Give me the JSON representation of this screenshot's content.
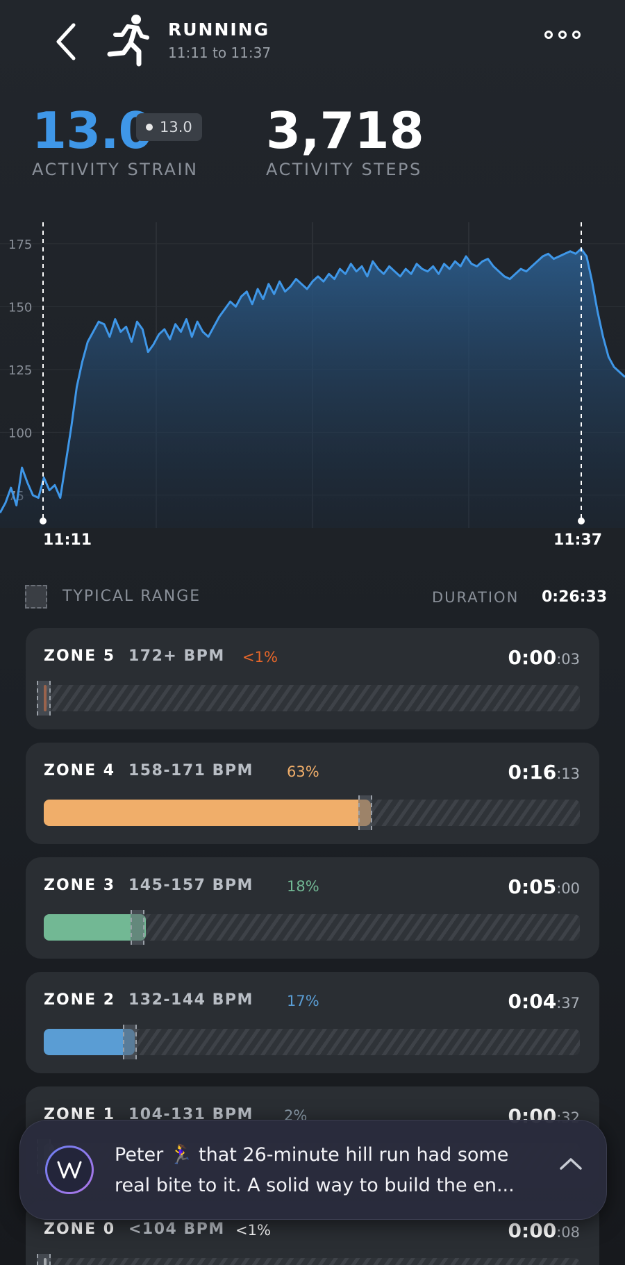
{
  "header": {
    "back_icon": "chevron-left-icon",
    "activity_icon": "running-figure-icon",
    "title": "RUNNING",
    "time_range": "11:11 to 11:37",
    "more_icon": "more-dots-icon"
  },
  "stats": {
    "strain_value": "13.0",
    "strain_chip": "13.0",
    "strain_label": "ACTIVITY STRAIN",
    "steps_value": "3,718",
    "steps_label": "ACTIVITY STEPS"
  },
  "chart_data": {
    "type": "area",
    "yticks": [
      "175",
      "150",
      "125",
      "100",
      "75"
    ],
    "ylim": [
      62,
      178
    ],
    "start_label": "11:11",
    "end_label": "11:37",
    "series_color": "#3f97e8",
    "y": [
      68,
      72,
      78,
      71,
      86,
      80,
      75,
      74,
      82,
      77,
      79,
      74,
      88,
      102,
      118,
      128,
      136,
      140,
      144,
      143,
      138,
      145,
      140,
      142,
      136,
      144,
      141,
      132,
      135,
      139,
      141,
      137,
      143,
      140,
      145,
      138,
      144,
      140,
      138,
      142,
      146,
      149,
      152,
      150,
      154,
      156,
      151,
      157,
      153,
      159,
      155,
      160,
      156,
      158,
      161,
      159,
      157,
      160,
      162,
      160,
      163,
      161,
      165,
      163,
      167,
      164,
      166,
      162,
      168,
      165,
      163,
      166,
      164,
      162,
      165,
      163,
      167,
      165,
      164,
      166,
      163,
      167,
      165,
      168,
      166,
      170,
      167,
      166,
      168,
      169,
      166,
      164,
      162,
      161,
      163,
      165,
      164,
      166,
      168,
      170,
      171,
      169,
      170,
      171,
      172,
      171,
      173,
      170,
      160,
      148,
      138,
      130,
      126,
      124,
      122
    ]
  },
  "legend": {
    "typical_range": "TYPICAL RANGE",
    "duration_label": "DURATION",
    "duration_value": "0:26:33"
  },
  "zones": [
    {
      "name": "ZONE 5",
      "bpm": "172+ BPM",
      "pct": "<1%",
      "time_main": "0:00",
      "time_sec": ":03",
      "color": "#e8672a",
      "fill": 0.002,
      "marker": 0.0
    },
    {
      "name": "ZONE 4",
      "bpm": "158-171 BPM",
      "pct": "63%",
      "time_main": "0:16",
      "time_sec": ":13",
      "color": "#f0ae6a",
      "fill": 0.61,
      "marker": 0.6
    },
    {
      "name": "ZONE 3",
      "bpm": "145-157 BPM",
      "pct": "18%",
      "time_main": "0:05",
      "time_sec": ":00",
      "color": "#72b894",
      "fill": 0.19,
      "marker": 0.175
    },
    {
      "name": "ZONE 2",
      "bpm": "132-144 BPM",
      "pct": "17%",
      "time_main": "0:04",
      "time_sec": ":37",
      "color": "#5a9dd4",
      "fill": 0.17,
      "marker": 0.16
    },
    {
      "name": "ZONE 1",
      "bpm": "104-131 BPM",
      "pct": "2%",
      "time_main": "0:00",
      "time_sec": ":32",
      "color": "#8a9aa8",
      "fill": 0.02,
      "marker": 0.0
    },
    {
      "name": "ZONE 0",
      "bpm": "<104 BPM",
      "pct": "<1%",
      "time_main": "0:00",
      "time_sec": ":08",
      "color": "#ffffff",
      "fill": 0.005,
      "marker": 0.0
    }
  ],
  "coach": {
    "logo_icon": "whoop-coach-logo-icon",
    "line1": "Peter 🏃‍♀️ that 26-minute hill run had some",
    "line2": "real bite to it.  A solid way to build the en...",
    "expand_icon": "chevron-up-icon"
  }
}
